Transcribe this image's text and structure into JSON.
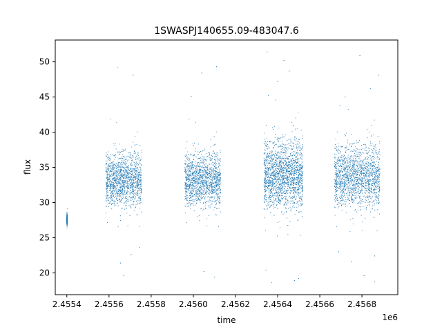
{
  "chart_data": {
    "type": "scatter",
    "title": "1SWASPJ140655.09-483047.6",
    "xlabel": "time",
    "ylabel": "flux",
    "x_offset_label": "1e6",
    "xlim": [
      2455345,
      2456970
    ],
    "ylim": [
      16.9,
      53.1
    ],
    "x_ticks": [
      2455400,
      2455600,
      2455800,
      2456000,
      2456200,
      2456400,
      2456600,
      2456800
    ],
    "x_tick_labels": [
      "2.4554",
      "2.4556",
      "2.4558",
      "2.4560",
      "2.4562",
      "2.4564",
      "2.4566",
      "2.4568"
    ],
    "y_ticks": [
      20,
      25,
      30,
      35,
      40,
      45,
      50
    ],
    "y_tick_labels": [
      "20",
      "25",
      "30",
      "35",
      "40",
      "45",
      "50"
    ],
    "grid": false,
    "marker_color": "#1f77b4",
    "series": [
      {
        "segments": [
          {
            "x_start": 2455400,
            "x_end": 2455402,
            "y_low": 26.6,
            "y_high": 28.6,
            "density": 0.5
          },
          {
            "x_start": 2455585,
            "x_end": 2455755,
            "y_low": 27.5,
            "y_high": 39.0,
            "density": 1.0
          },
          {
            "x_start": 2455960,
            "x_end": 2456130,
            "y_low": 27.5,
            "y_high": 39.0,
            "density": 1.0
          },
          {
            "x_start": 2456335,
            "x_end": 2456520,
            "y_low": 26.5,
            "y_high": 41.5,
            "density": 1.5
          },
          {
            "x_start": 2456670,
            "x_end": 2456885,
            "y_low": 27.0,
            "y_high": 40.5,
            "density": 1.2
          }
        ],
        "outliers": [
          [
            2455670,
            19.6
          ],
          [
            2455655,
            21.4
          ],
          [
            2455640,
            49.2
          ],
          [
            2455715,
            48.1
          ],
          [
            2455705,
            22.6
          ],
          [
            2455745,
            23.6
          ],
          [
            2456040,
            48.4
          ],
          [
            2456050,
            20.2
          ],
          [
            2456100,
            19.4
          ],
          [
            2456110,
            49.3
          ],
          [
            2455990,
            45.1
          ],
          [
            2456350,
            51.4
          ],
          [
            2456370,
            18.6
          ],
          [
            2456430,
            50.2
          ],
          [
            2456480,
            18.9
          ],
          [
            2456500,
            19.2
          ],
          [
            2456455,
            48.7
          ],
          [
            2456400,
            47.2
          ],
          [
            2456790,
            50.9
          ],
          [
            2456810,
            19.6
          ],
          [
            2456860,
            18.7
          ],
          [
            2456880,
            48.1
          ],
          [
            2456720,
            45.0
          ],
          [
            2456750,
            21.6
          ],
          [
            2456690,
            23.0
          ],
          [
            2456840,
            46.2
          ],
          [
            2456860,
            22.4
          ],
          [
            2456345,
            20.4
          ]
        ]
      }
    ]
  }
}
